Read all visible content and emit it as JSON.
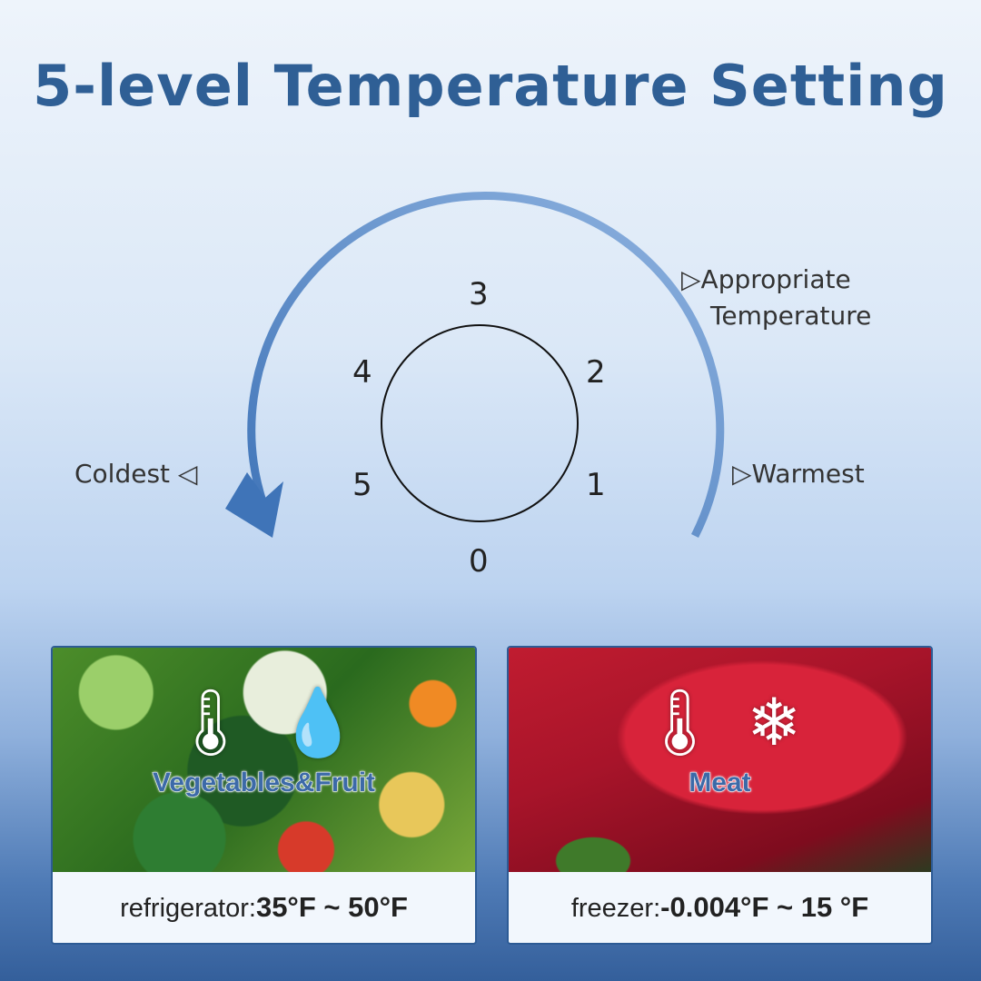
{
  "title": "5-level Temperature Setting",
  "dial": {
    "numbers": [
      "0",
      "1",
      "2",
      "3",
      "4",
      "5"
    ],
    "coldest": "Coldest ◁",
    "warmest": "▷Warmest",
    "appropriate_line1": "▷Appropriate",
    "appropriate_line2": "Temperature"
  },
  "panels": [
    {
      "category": "Vegetables&Fruit",
      "icons": [
        "thermometer-icon",
        "water-drop-icon"
      ],
      "label": "refrigerator:",
      "range": "35°F ~ 50°F"
    },
    {
      "category": "Meat",
      "icons": [
        "thermometer-icon",
        "snowflake-icon"
      ],
      "label": "freezer:",
      "range": "-0.004°F ~ 15 °F"
    }
  ],
  "colors": {
    "title": "#2f5f95",
    "arc": "#4a7fc0"
  }
}
